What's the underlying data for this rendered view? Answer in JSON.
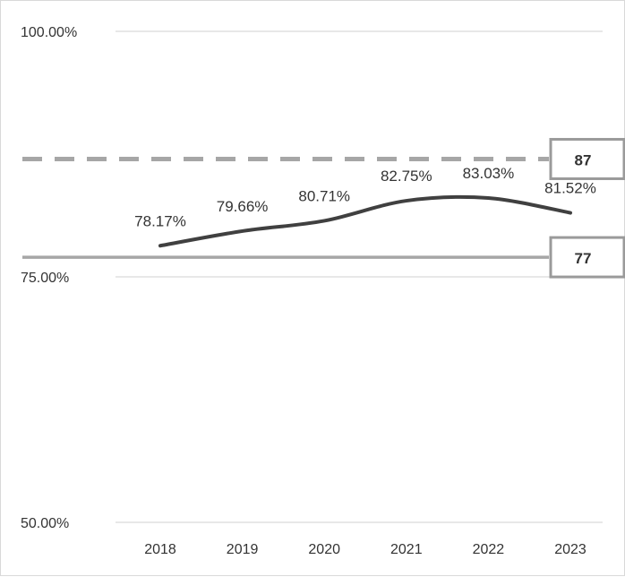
{
  "chart_data": {
    "type": "line",
    "categories": [
      "2018",
      "2019",
      "2020",
      "2021",
      "2022",
      "2023"
    ],
    "series": [
      {
        "values": [
          78.17,
          79.66,
          80.71,
          82.75,
          83.03,
          81.52
        ],
        "data_labels": [
          "78.17%",
          "79.66%",
          "80.71%",
          "82.75%",
          "83.03%",
          "81.52%"
        ],
        "color": "#404040",
        "style": "solid"
      }
    ],
    "reference_lines": [
      {
        "value": 87,
        "label": "87",
        "style": "dashed",
        "color": "#a6a6a6"
      },
      {
        "value": 77,
        "label": "77",
        "style": "solid",
        "color": "#a6a6a6"
      }
    ],
    "y_ticks": [
      {
        "value": 100,
        "label": "100.00%"
      },
      {
        "value": 75,
        "label": "75.00%"
      },
      {
        "value": 50,
        "label": "50.00%"
      }
    ],
    "ylim": [
      50,
      100
    ],
    "grid": true,
    "gridline_color": "#d9d9d9",
    "legend": "none",
    "title": "",
    "xlabel": "",
    "ylabel": ""
  }
}
